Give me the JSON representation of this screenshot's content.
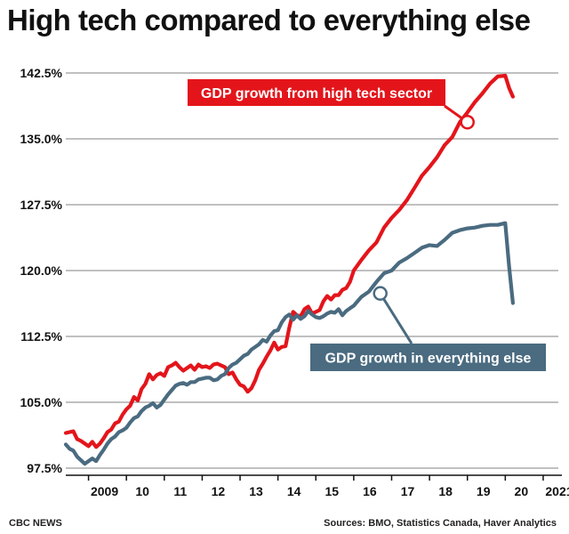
{
  "chart_data": {
    "type": "line",
    "title": "High tech compared to everything else",
    "xlabel": "",
    "ylabel": "",
    "ylim": [
      97.5,
      142.5
    ],
    "yticks": [
      "97.5%",
      "105.0%",
      "112.5%",
      "120.0%",
      "127.5%",
      "135.0%",
      "142.5%"
    ],
    "ytick_values": [
      97.5,
      105.0,
      112.5,
      120.0,
      127.5,
      135.0,
      142.5
    ],
    "xlim": [
      2008.4,
      2021.4
    ],
    "xticks": [
      "2009",
      "10",
      "11",
      "12",
      "13",
      "14",
      "15",
      "16",
      "17",
      "18",
      "19",
      "20",
      "2021"
    ],
    "xtick_values": [
      2009,
      2010,
      2011,
      2012,
      2013,
      2014,
      2015,
      2016,
      2017,
      2018,
      2019,
      2020,
      2021
    ],
    "grid": "horizontal",
    "series": [
      {
        "name": "GDP growth from high tech sector",
        "color": "#e3151b",
        "x": [
          2008.4,
          2008.5,
          2008.6,
          2008.7,
          2008.8,
          2008.9,
          2009.0,
          2009.1,
          2009.2,
          2009.3,
          2009.4,
          2009.5,
          2009.6,
          2009.7,
          2009.8,
          2009.9,
          2010.0,
          2010.1,
          2010.2,
          2010.3,
          2010.4,
          2010.5,
          2010.6,
          2010.7,
          2010.8,
          2010.9,
          2011.0,
          2011.1,
          2011.2,
          2011.3,
          2011.4,
          2011.5,
          2011.6,
          2011.7,
          2011.8,
          2011.9,
          2012.0,
          2012.1,
          2012.2,
          2012.3,
          2012.4,
          2012.5,
          2012.6,
          2012.7,
          2012.8,
          2012.9,
          2013.0,
          2013.1,
          2013.2,
          2013.3,
          2013.4,
          2013.5,
          2013.6,
          2013.7,
          2013.8,
          2013.9,
          2014.0,
          2014.1,
          2014.2,
          2014.3,
          2014.4,
          2014.5,
          2014.6,
          2014.7,
          2014.8,
          2014.9,
          2015.0,
          2015.1,
          2015.2,
          2015.3,
          2015.4,
          2015.5,
          2015.6,
          2015.7,
          2015.8,
          2015.9,
          2016.0,
          2016.2,
          2016.4,
          2016.6,
          2016.8,
          2017.0,
          2017.2,
          2017.4,
          2017.6,
          2017.8,
          2018.0,
          2018.2,
          2018.4,
          2018.6,
          2018.8,
          2019.0,
          2019.2,
          2019.4,
          2019.6,
          2019.8,
          2020.0,
          2020.1,
          2020.2
        ],
        "y": [
          101.5,
          101.6,
          101.7,
          100.8,
          100.6,
          100.3,
          100.0,
          100.5,
          99.9,
          100.3,
          100.9,
          101.6,
          101.9,
          102.6,
          102.8,
          103.6,
          104.2,
          104.6,
          105.6,
          105.2,
          106.5,
          107.1,
          108.2,
          107.6,
          108.1,
          108.3,
          108.0,
          109.0,
          109.2,
          109.5,
          109.0,
          108.6,
          108.9,
          109.2,
          108.7,
          109.3,
          109.0,
          109.1,
          108.9,
          109.3,
          109.4,
          109.2,
          109.0,
          108.2,
          108.4,
          107.6,
          107.0,
          106.8,
          106.2,
          106.6,
          107.5,
          108.7,
          109.4,
          110.2,
          110.9,
          111.8,
          111.0,
          111.3,
          111.4,
          113.5,
          115.3,
          114.9,
          114.8,
          115.6,
          115.9,
          115.1,
          115.3,
          115.5,
          116.5,
          117.1,
          116.7,
          117.2,
          117.2,
          117.8,
          118.0,
          118.7,
          120.0,
          121.2,
          122.3,
          123.2,
          124.9,
          126.0,
          126.9,
          128.0,
          129.4,
          130.8,
          131.8,
          132.9,
          134.3,
          135.2,
          136.9,
          138.0,
          139.2,
          140.2,
          141.3,
          142.1,
          142.2,
          140.8,
          139.8
        ]
      },
      {
        "name": "GDP growth in everything else",
        "color": "#4a6b80",
        "x": [
          2008.4,
          2008.5,
          2008.6,
          2008.7,
          2008.8,
          2008.9,
          2009.0,
          2009.1,
          2009.2,
          2009.3,
          2009.4,
          2009.5,
          2009.6,
          2009.7,
          2009.8,
          2009.9,
          2010.0,
          2010.1,
          2010.2,
          2010.3,
          2010.4,
          2010.5,
          2010.6,
          2010.7,
          2010.8,
          2010.9,
          2011.0,
          2011.1,
          2011.2,
          2011.3,
          2011.4,
          2011.5,
          2011.6,
          2011.7,
          2011.8,
          2011.9,
          2012.0,
          2012.1,
          2012.2,
          2012.3,
          2012.4,
          2012.5,
          2012.6,
          2012.7,
          2012.8,
          2012.9,
          2013.0,
          2013.1,
          2013.2,
          2013.3,
          2013.4,
          2013.5,
          2013.6,
          2013.7,
          2013.8,
          2013.9,
          2014.0,
          2014.1,
          2014.2,
          2014.3,
          2014.4,
          2014.5,
          2014.6,
          2014.7,
          2014.8,
          2014.9,
          2015.0,
          2015.1,
          2015.2,
          2015.3,
          2015.4,
          2015.5,
          2015.6,
          2015.7,
          2015.8,
          2015.9,
          2016.0,
          2016.2,
          2016.4,
          2016.6,
          2016.8,
          2017.0,
          2017.2,
          2017.4,
          2017.6,
          2017.8,
          2018.0,
          2018.2,
          2018.4,
          2018.6,
          2018.8,
          2019.0,
          2019.2,
          2019.4,
          2019.6,
          2019.8,
          2020.0,
          2020.1,
          2020.2
        ],
        "y": [
          100.2,
          99.7,
          99.5,
          98.8,
          98.4,
          98.0,
          98.3,
          98.6,
          98.3,
          99.0,
          99.6,
          100.3,
          100.8,
          101.1,
          101.6,
          101.8,
          102.1,
          102.7,
          103.2,
          103.4,
          104.0,
          104.4,
          104.6,
          104.9,
          104.4,
          104.7,
          105.3,
          105.9,
          106.4,
          106.9,
          107.1,
          107.2,
          107.0,
          107.3,
          107.3,
          107.6,
          107.7,
          107.8,
          107.8,
          107.5,
          107.6,
          108.0,
          108.2,
          108.9,
          109.3,
          109.5,
          109.9,
          110.3,
          110.5,
          111.0,
          111.3,
          111.6,
          112.1,
          111.9,
          112.6,
          113.1,
          113.2,
          114.1,
          114.7,
          115.0,
          114.4,
          114.9,
          114.5,
          114.8,
          115.4,
          115.0,
          114.7,
          114.6,
          114.8,
          115.1,
          115.3,
          115.2,
          115.6,
          114.9,
          115.4,
          115.7,
          116.0,
          117.0,
          117.6,
          118.7,
          119.7,
          120.0,
          120.9,
          121.4,
          122.0,
          122.6,
          122.9,
          122.8,
          123.5,
          124.3,
          124.6,
          124.8,
          124.9,
          125.1,
          125.2,
          125.2,
          125.4,
          120.5,
          116.3
        ]
      }
    ],
    "annotations": [
      {
        "text": "GDP growth from high tech sector",
        "series": 0,
        "marker_x": 2019.0,
        "marker_y": 136.9,
        "color": "#e3151b"
      },
      {
        "text": "GDP growth in everything else",
        "series": 1,
        "marker_x": 2016.7,
        "marker_y": 117.4,
        "color": "#4a6b80"
      }
    ]
  },
  "footer": {
    "source_left": "CBC NEWS",
    "source_right": "Sources: BMO, Statistics Canada, Haver Analytics"
  }
}
